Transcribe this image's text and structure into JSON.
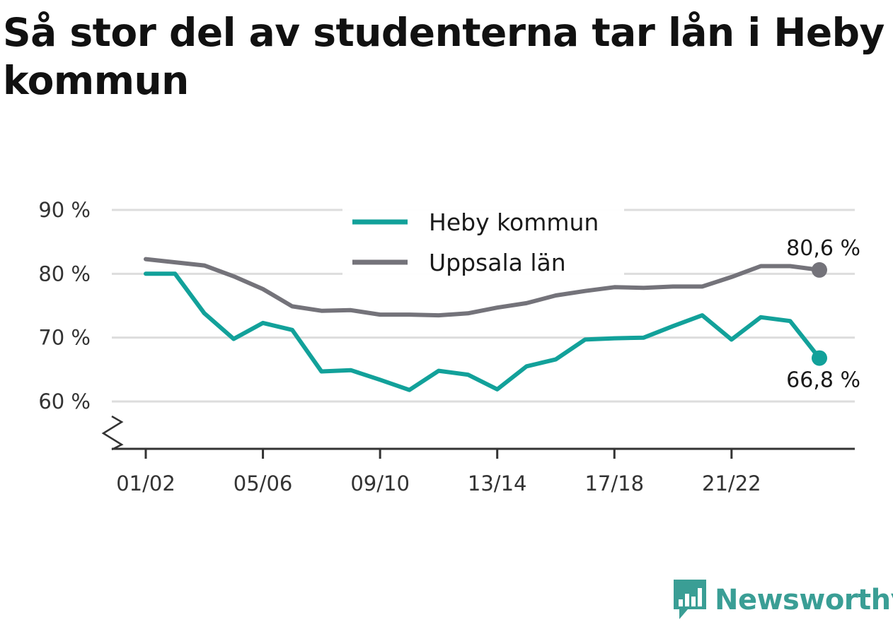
{
  "title": "Så stor del av studenterna tar lån i Heby kommun",
  "brand": {
    "name": "Newsworthy",
    "color": "#3a9e95",
    "icon": "newsworthy-logo-icon"
  },
  "colors": {
    "heby": "#12a19a",
    "uppsala": "#74737a",
    "grid": "#dddddd",
    "axis": "#333333"
  },
  "chart_data": {
    "type": "line",
    "title": "Så stor del av studenterna tar lån i Heby kommun",
    "xlabel": "",
    "ylabel": "",
    "x": [
      "01/02",
      "02/03",
      "03/04",
      "04/05",
      "05/06",
      "06/07",
      "07/08",
      "08/09",
      "09/10",
      "10/11",
      "11/12",
      "12/13",
      "13/14",
      "14/15",
      "15/16",
      "16/17",
      "17/18",
      "18/19",
      "19/20",
      "20/21",
      "21/22",
      "22/23",
      "23/24",
      "24/25"
    ],
    "x_tick_labels": [
      "01/02",
      "05/06",
      "09/10",
      "13/14",
      "17/18",
      "21/22"
    ],
    "y_ticks": [
      60,
      70,
      80,
      90
    ],
    "y_tick_labels": [
      "60 %",
      "70 %",
      "80 %",
      "90 %"
    ],
    "ylim": [
      55,
      90
    ],
    "y_axis_break": true,
    "grid": true,
    "legend_position": "top-center",
    "series": [
      {
        "name": "Heby kommun",
        "color": "#12a19a",
        "values": [
          80.0,
          80.0,
          73.8,
          69.8,
          72.3,
          71.2,
          64.7,
          64.9,
          63.4,
          61.8,
          64.8,
          64.2,
          61.9,
          65.5,
          66.6,
          69.7,
          69.9,
          70.0,
          71.8,
          73.5,
          69.7,
          73.2,
          72.6,
          66.8
        ],
        "end_label": "66,8 %"
      },
      {
        "name": "Uppsala län",
        "color": "#74737a",
        "values": [
          82.3,
          81.8,
          81.3,
          79.6,
          77.6,
          74.9,
          74.2,
          74.3,
          73.6,
          73.6,
          73.5,
          73.8,
          74.7,
          75.4,
          76.6,
          77.3,
          77.9,
          77.8,
          78.0,
          78.0,
          79.5,
          81.2,
          81.2,
          80.6
        ],
        "end_label": "80,6 %"
      }
    ]
  }
}
